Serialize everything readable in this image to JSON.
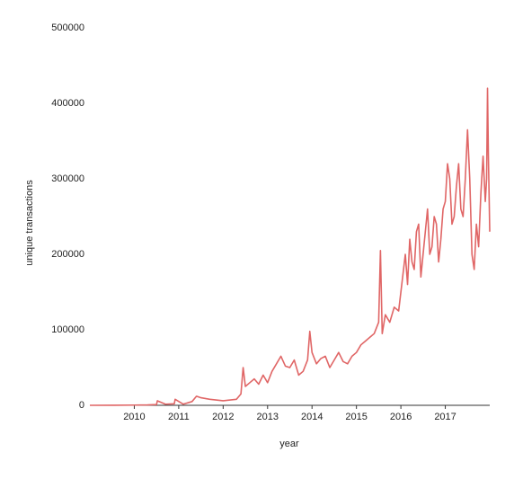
{
  "chart_data": {
    "type": "line",
    "x_label": "year",
    "y_label": "unique transactions",
    "xlim": [
      2009.0,
      2018.0
    ],
    "xticks": [
      2010,
      2011,
      2012,
      2013,
      2014,
      2015,
      2016,
      2017
    ],
    "ylim": [
      0,
      500000
    ],
    "yticks": [
      0,
      100000,
      200000,
      300000,
      400000,
      500000
    ],
    "grid": false,
    "x": [
      2009.0,
      2009.5,
      2010.0,
      2010.3,
      2010.5,
      2010.52,
      2010.7,
      2010.9,
      2010.92,
      2011.1,
      2011.3,
      2011.4,
      2011.5,
      2011.7,
      2012.0,
      2012.3,
      2012.4,
      2012.45,
      2012.5,
      2012.6,
      2012.7,
      2012.8,
      2012.9,
      2013.0,
      2013.1,
      2013.2,
      2013.3,
      2013.4,
      2013.5,
      2013.6,
      2013.7,
      2013.8,
      2013.9,
      2013.95,
      2014.0,
      2014.1,
      2014.2,
      2014.3,
      2014.4,
      2014.5,
      2014.6,
      2014.7,
      2014.8,
      2014.9,
      2015.0,
      2015.1,
      2015.2,
      2015.3,
      2015.4,
      2015.5,
      2015.54,
      2015.58,
      2015.65,
      2015.75,
      2015.85,
      2015.95,
      2016.0,
      2016.05,
      2016.1,
      2016.15,
      2016.2,
      2016.25,
      2016.3,
      2016.35,
      2016.4,
      2016.45,
      2016.5,
      2016.55,
      2016.6,
      2016.65,
      2016.7,
      2016.75,
      2016.8,
      2016.85,
      2016.9,
      2016.95,
      2017.0,
      2017.05,
      2017.1,
      2017.15,
      2017.2,
      2017.25,
      2017.3,
      2017.35,
      2017.4,
      2017.45,
      2017.5,
      2017.55,
      2017.6,
      2017.65,
      2017.7,
      2017.75,
      2017.8,
      2017.85,
      2017.9,
      2017.93,
      2017.95,
      2017.97,
      2018.0
    ],
    "series": [
      {
        "name": "unique transactions",
        "color": "#e06666",
        "values": [
          0,
          100,
          300,
          500,
          1000,
          6000,
          1500,
          2000,
          8000,
          1500,
          5000,
          12000,
          10000,
          8000,
          6000,
          8000,
          15000,
          50000,
          25000,
          30000,
          35000,
          28000,
          40000,
          30000,
          45000,
          55000,
          65000,
          52000,
          50000,
          60000,
          40000,
          45000,
          60000,
          98000,
          70000,
          55000,
          62000,
          65000,
          50000,
          60000,
          70000,
          58000,
          55000,
          65000,
          70000,
          80000,
          85000,
          90000,
          95000,
          110000,
          205000,
          95000,
          120000,
          110000,
          130000,
          125000,
          150000,
          175000,
          200000,
          160000,
          220000,
          190000,
          180000,
          230000,
          240000,
          170000,
          200000,
          230000,
          260000,
          200000,
          210000,
          250000,
          240000,
          190000,
          220000,
          260000,
          270000,
          320000,
          300000,
          240000,
          250000,
          290000,
          320000,
          260000,
          250000,
          300000,
          365000,
          300000,
          200000,
          180000,
          240000,
          210000,
          280000,
          330000,
          270000,
          300000,
          420000,
          330000,
          230000
        ]
      }
    ]
  }
}
